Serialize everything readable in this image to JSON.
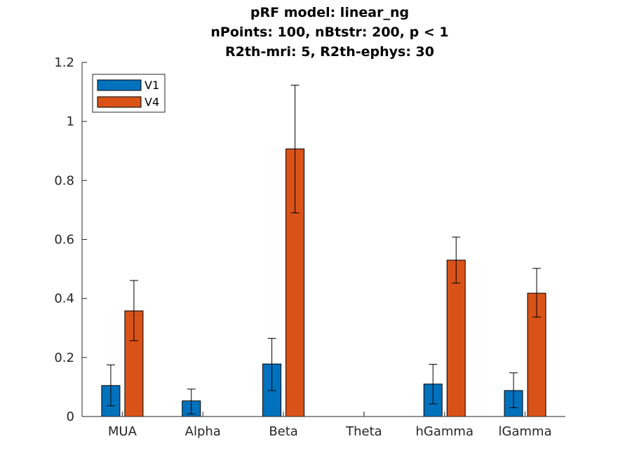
{
  "chart_data": {
    "type": "bar",
    "title": [
      "pRF model: linear_ng",
      "nPoints: 100, nBtstr: 200, p < 1",
      "R2th-mri: 5, R2th-ephys: 30"
    ],
    "xlabel": "",
    "ylabel": "",
    "categories": [
      "MUA",
      "Alpha",
      "Beta",
      "Theta",
      "hGamma",
      "lGamma"
    ],
    "ylim": [
      0,
      1.2
    ],
    "yticks": [
      0,
      0.2,
      0.4,
      0.6,
      0.8,
      1,
      1.2
    ],
    "ytick_labels": [
      "0",
      "0.2",
      "0.4",
      "0.6",
      "0.8",
      "1",
      "1.2"
    ],
    "legend_position": "top-left",
    "series": [
      {
        "name": "V1",
        "color": "#0072BD",
        "values": [
          0.105,
          0.053,
          0.178,
          null,
          0.11,
          0.088
        ],
        "err_low": [
          0.036,
          0.009,
          0.088,
          null,
          0.043,
          0.03
        ],
        "err_high": [
          0.175,
          0.093,
          0.265,
          null,
          0.177,
          0.148
        ]
      },
      {
        "name": "V4",
        "color": "#D95319",
        "values": [
          0.358,
          null,
          0.907,
          null,
          0.53,
          0.418
        ],
        "err_low": [
          0.257,
          null,
          0.69,
          null,
          0.452,
          0.337
        ],
        "err_high": [
          0.461,
          null,
          1.123,
          null,
          0.608,
          0.502
        ]
      }
    ]
  }
}
